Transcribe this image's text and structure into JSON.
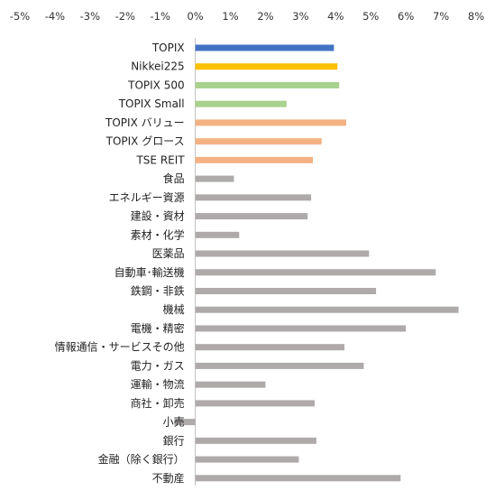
{
  "chart_data": {
    "type": "bar",
    "orientation": "horizontal",
    "grid": false,
    "legend": "none",
    "xlim": [
      -5,
      8
    ],
    "x_ticks": [
      "-5%",
      "-4%",
      "-3%",
      "-2%",
      "-1%",
      "0%",
      "1%",
      "2%",
      "3%",
      "4%",
      "5%",
      "6%",
      "7%",
      "8%"
    ],
    "categories": [
      "TOPIX",
      "Nikkei225",
      "TOPIX 500",
      "TOPIX Small",
      "TOPIX バリュー",
      "TOPIX グロース",
      "TSE REIT",
      "食品",
      "エネルギー資源",
      "建設・資材",
      "素材・化学",
      "医薬品",
      "自動車･輸送機",
      "鉄鋼・非鉄",
      "機械",
      "電機・精密",
      "情報通信・サービスその他",
      "電力・ガス",
      "運輸・物流",
      "商社・卸売",
      "小売",
      "銀行",
      "金融（除く銀行）",
      "不動産"
    ],
    "values": [
      3.95,
      4.05,
      4.1,
      2.6,
      4.3,
      3.6,
      3.35,
      1.1,
      3.3,
      3.2,
      1.25,
      4.95,
      6.85,
      5.15,
      7.5,
      6.0,
      4.25,
      4.8,
      2.0,
      3.4,
      -0.6,
      3.45,
      2.95,
      5.85
    ],
    "colors": [
      "#4472c4",
      "#ffc000",
      "#a9d18e",
      "#a9d18e",
      "#f4b183",
      "#f4b183",
      "#f4b183",
      "#aeaaaa",
      "#aeaaaa",
      "#aeaaaa",
      "#aeaaaa",
      "#aeaaaa",
      "#aeaaaa",
      "#aeaaaa",
      "#aeaaaa",
      "#aeaaaa",
      "#aeaaaa",
      "#aeaaaa",
      "#aeaaaa",
      "#aeaaaa",
      "#aeaaaa",
      "#aeaaaa",
      "#aeaaaa",
      "#aeaaaa"
    ],
    "axis_color": "#bfbfbf"
  }
}
